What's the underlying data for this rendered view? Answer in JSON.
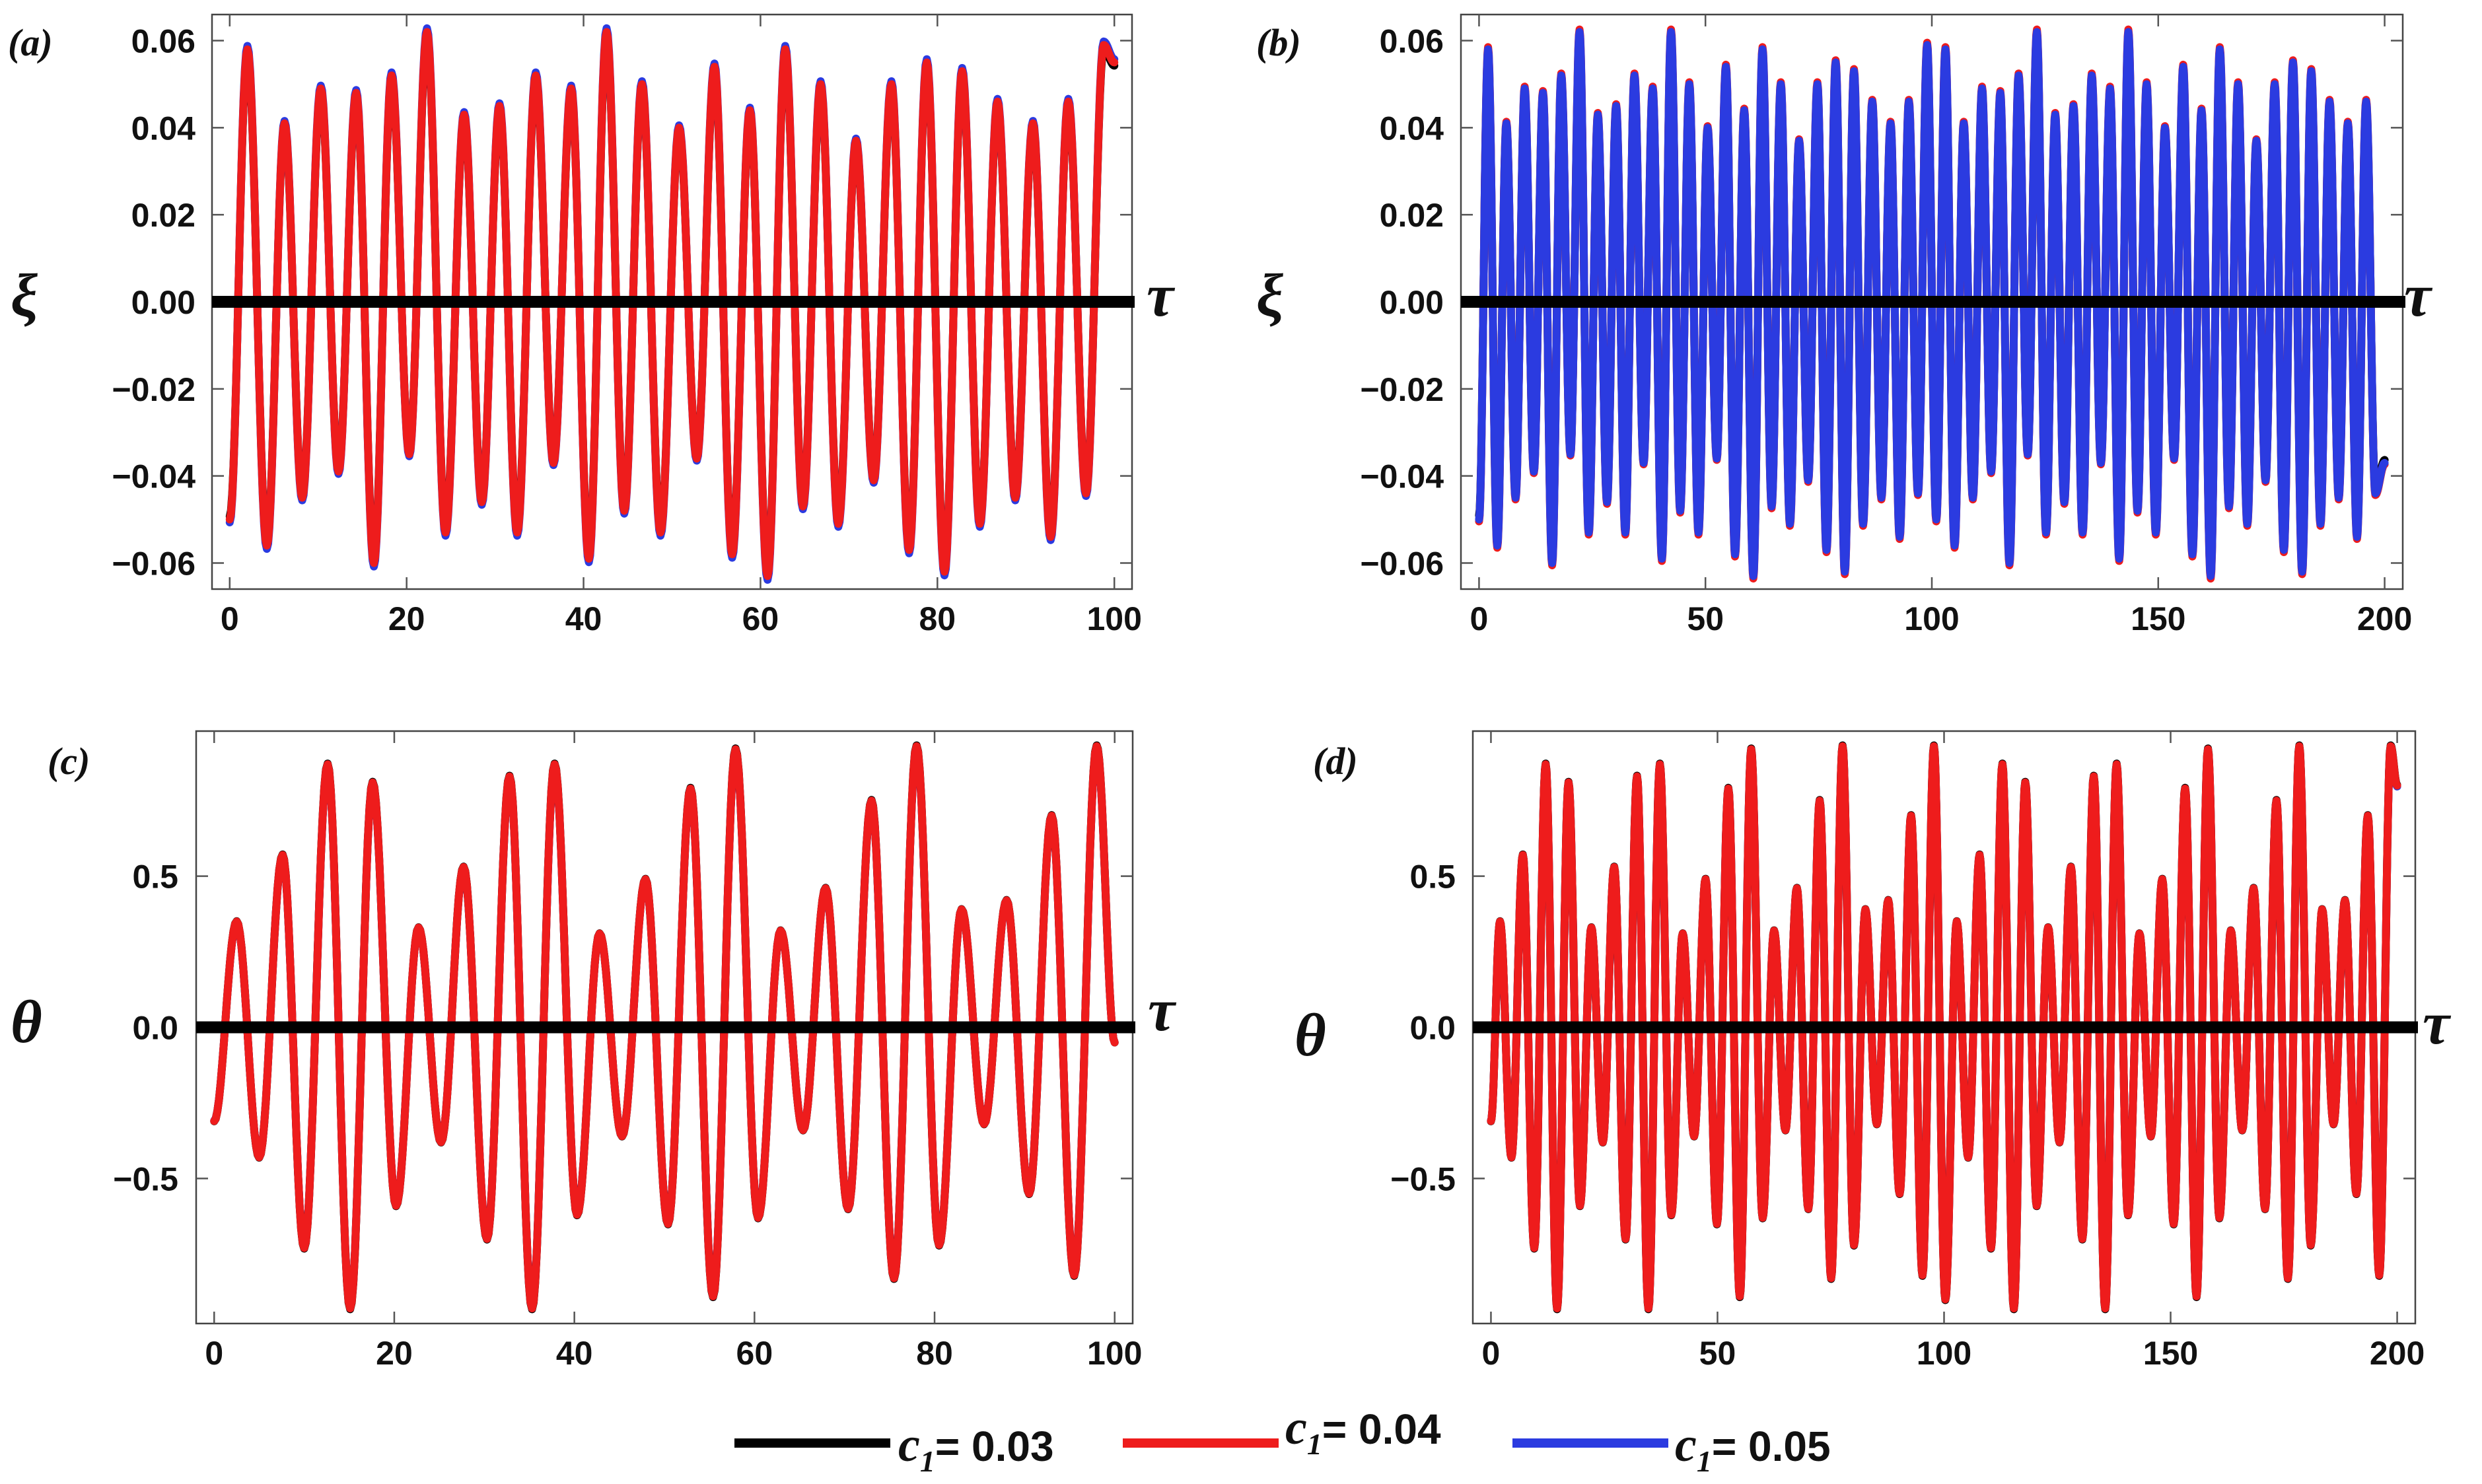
{
  "legend": [
    {
      "label_main": "c",
      "label_sub": "1",
      "label_rest": "= 0.03",
      "color": "#000000"
    },
    {
      "label_main": "c",
      "label_sub": "1",
      "label_rest": "= 0.04",
      "color": "#ee1c1c"
    },
    {
      "label_main": "c",
      "label_sub": "1",
      "label_rest": "= 0.05",
      "color": "#2b3be0"
    }
  ],
  "chart_data": [
    {
      "type": "line",
      "panel_label": "(a)",
      "xlabel": "τ",
      "ylabel": "ξ",
      "xlim": [
        -2,
        102
      ],
      "ylim": [
        -0.066,
        0.066
      ],
      "xticks": [
        0,
        20,
        40,
        60,
        80,
        100
      ],
      "xtick_labels": [
        "0",
        "20",
        "40",
        "60",
        "80",
        "100"
      ],
      "yticks": [
        0.06,
        0.04,
        0.02,
        0.0,
        -0.02,
        -0.04,
        -0.06
      ],
      "ytick_labels": [
        "0.06",
        "0.04",
        "0.02",
        "0.00",
        "−0.02",
        "−0.04",
        "−0.06"
      ],
      "x_start": 0,
      "x_end": 100,
      "start_value": -0.05,
      "end_value": 0.055,
      "zero_line": true,
      "extrema": [
        {
          "x": 2.0,
          "y": 0.058
        },
        {
          "x": 4.2,
          "y": -0.056
        },
        {
          "x": 6.2,
          "y": 0.041
        },
        {
          "x": 8.2,
          "y": -0.045
        },
        {
          "x": 10.3,
          "y": 0.049
        },
        {
          "x": 12.3,
          "y": -0.039
        },
        {
          "x": 14.3,
          "y": 0.048
        },
        {
          "x": 16.3,
          "y": -0.06
        },
        {
          "x": 18.3,
          "y": 0.052
        },
        {
          "x": 20.3,
          "y": -0.035
        },
        {
          "x": 22.3,
          "y": 0.062
        },
        {
          "x": 24.4,
          "y": -0.053
        },
        {
          "x": 26.5,
          "y": 0.043
        },
        {
          "x": 28.5,
          "y": -0.046
        },
        {
          "x": 30.5,
          "y": 0.045
        },
        {
          "x": 32.5,
          "y": -0.053
        },
        {
          "x": 34.6,
          "y": 0.052
        },
        {
          "x": 36.6,
          "y": -0.037
        },
        {
          "x": 38.6,
          "y": 0.049
        },
        {
          "x": 40.6,
          "y": -0.059
        },
        {
          "x": 42.6,
          "y": 0.062
        },
        {
          "x": 44.6,
          "y": -0.048
        },
        {
          "x": 46.6,
          "y": 0.05
        },
        {
          "x": 48.7,
          "y": -0.053
        },
        {
          "x": 50.8,
          "y": 0.04
        },
        {
          "x": 52.8,
          "y": -0.036
        },
        {
          "x": 54.8,
          "y": 0.054
        },
        {
          "x": 56.8,
          "y": -0.058
        },
        {
          "x": 58.8,
          "y": 0.044
        },
        {
          "x": 60.8,
          "y": -0.063
        },
        {
          "x": 62.8,
          "y": 0.058
        },
        {
          "x": 64.8,
          "y": -0.047
        },
        {
          "x": 66.8,
          "y": 0.05
        },
        {
          "x": 68.8,
          "y": -0.051
        },
        {
          "x": 70.8,
          "y": 0.037
        },
        {
          "x": 72.8,
          "y": -0.041
        },
        {
          "x": 74.8,
          "y": 0.05
        },
        {
          "x": 76.8,
          "y": -0.057
        },
        {
          "x": 78.8,
          "y": 0.055
        },
        {
          "x": 80.8,
          "y": -0.062
        },
        {
          "x": 82.8,
          "y": 0.053
        },
        {
          "x": 84.8,
          "y": -0.051
        },
        {
          "x": 86.8,
          "y": 0.046
        },
        {
          "x": 88.8,
          "y": -0.045
        },
        {
          "x": 90.8,
          "y": 0.041
        },
        {
          "x": 92.8,
          "y": -0.054
        },
        {
          "x": 94.8,
          "y": 0.046
        },
        {
          "x": 96.8,
          "y": -0.044
        },
        {
          "x": 98.8,
          "y": 0.059
        }
      ],
      "series": [
        {
          "name": "c1 = 0.03",
          "offset": -0.0009
        },
        {
          "name": "c1 = 0.05",
          "offset": 0.0009
        },
        {
          "name": "c1 = 0.04",
          "offset": 0.0
        }
      ]
    },
    {
      "type": "line",
      "panel_label": "(b)",
      "xlabel": "τ",
      "ylabel": "ξ",
      "xlim": [
        -4,
        204
      ],
      "ylim": [
        -0.066,
        0.066
      ],
      "xticks": [
        0,
        50,
        100,
        150,
        200
      ],
      "xtick_labels": [
        "0",
        "50",
        "100",
        "150",
        "200"
      ],
      "yticks": [
        0.06,
        0.04,
        0.02,
        0.0,
        -0.02,
        -0.04,
        -0.06
      ],
      "ytick_labels": [
        "0.06",
        "0.04",
        "0.02",
        "0.00",
        "−0.02",
        "−0.04",
        "−0.06"
      ],
      "x_start": 0,
      "x_end": 200,
      "start_value": -0.05,
      "end_value": -0.037,
      "zero_line": true,
      "extrema_repeat": true,
      "period_pattern": [
        0.058,
        -0.056,
        0.041,
        -0.045,
        0.049,
        -0.039,
        0.048,
        -0.06,
        0.052,
        -0.035,
        0.062,
        -0.053,
        0.043,
        -0.046,
        0.045,
        -0.053,
        0.052,
        -0.037,
        0.049,
        -0.059,
        0.062,
        -0.048,
        0.05,
        -0.053,
        0.04,
        -0.036,
        0.054,
        -0.058,
        0.044,
        -0.063,
        0.058,
        -0.047,
        0.05,
        -0.051,
        0.037,
        -0.041,
        0.05,
        -0.057,
        0.055,
        -0.062,
        0.053,
        -0.051,
        0.046,
        -0.045,
        0.041,
        -0.054,
        0.046,
        -0.044,
        0.059,
        -0.05
      ],
      "half_period": 2.02,
      "series": [
        {
          "name": "c1 = 0.03",
          "offset": -0.0012
        },
        {
          "name": "c1 = 0.04",
          "offset": 0.0006
        },
        {
          "name": "c1 = 0.05",
          "offset": 0.0
        }
      ]
    },
    {
      "type": "line",
      "panel_label": "(c)",
      "xlabel": "τ",
      "ylabel": "θ",
      "xlim": [
        -2,
        102
      ],
      "ylim": [
        -0.98,
        0.98
      ],
      "xticks": [
        0,
        20,
        40,
        60,
        80,
        100
      ],
      "xtick_labels": [
        "0",
        "20",
        "40",
        "60",
        "80",
        "100"
      ],
      "yticks": [
        0.5,
        0.0,
        -0.5
      ],
      "ytick_labels": [
        "0.5",
        "0.0",
        "−0.5"
      ],
      "x_start": 0,
      "x_end": 100,
      "start_value": -0.31,
      "end_value": -0.05,
      "zero_line": true,
      "extrema": [
        {
          "x": 2.5,
          "y": 0.35
        },
        {
          "x": 5.0,
          "y": -0.43
        },
        {
          "x": 7.6,
          "y": 0.57
        },
        {
          "x": 10.0,
          "y": -0.73
        },
        {
          "x": 12.6,
          "y": 0.87
        },
        {
          "x": 15.1,
          "y": -0.93
        },
        {
          "x": 17.6,
          "y": 0.81
        },
        {
          "x": 20.2,
          "y": -0.59
        },
        {
          "x": 22.7,
          "y": 0.33
        },
        {
          "x": 25.2,
          "y": -0.38
        },
        {
          "x": 27.7,
          "y": 0.53
        },
        {
          "x": 30.3,
          "y": -0.7
        },
        {
          "x": 32.8,
          "y": 0.83
        },
        {
          "x": 35.3,
          "y": -0.93
        },
        {
          "x": 37.8,
          "y": 0.87
        },
        {
          "x": 40.3,
          "y": -0.62
        },
        {
          "x": 42.8,
          "y": 0.31
        },
        {
          "x": 45.3,
          "y": -0.36
        },
        {
          "x": 47.9,
          "y": 0.49
        },
        {
          "x": 50.4,
          "y": -0.65
        },
        {
          "x": 52.9,
          "y": 0.79
        },
        {
          "x": 55.4,
          "y": -0.89
        },
        {
          "x": 57.9,
          "y": 0.92
        },
        {
          "x": 60.4,
          "y": -0.63
        },
        {
          "x": 62.9,
          "y": 0.32
        },
        {
          "x": 65.4,
          "y": -0.34
        },
        {
          "x": 67.9,
          "y": 0.46
        },
        {
          "x": 70.4,
          "y": -0.6
        },
        {
          "x": 73.0,
          "y": 0.75
        },
        {
          "x": 75.5,
          "y": -0.83
        },
        {
          "x": 78.0,
          "y": 0.93
        },
        {
          "x": 80.5,
          "y": -0.72
        },
        {
          "x": 83.0,
          "y": 0.39
        },
        {
          "x": 85.5,
          "y": -0.32
        },
        {
          "x": 88.0,
          "y": 0.42
        },
        {
          "x": 90.5,
          "y": -0.55
        },
        {
          "x": 93.0,
          "y": 0.7
        },
        {
          "x": 95.5,
          "y": -0.82
        },
        {
          "x": 98.0,
          "y": 0.93
        }
      ],
      "series": [
        {
          "name": "c1 = 0.05",
          "offset": -0.004
        },
        {
          "name": "c1 = 0.03",
          "offset": 0.003
        },
        {
          "name": "c1 = 0.04",
          "offset": 0.0
        }
      ]
    },
    {
      "type": "line",
      "panel_label": "(d)",
      "xlabel": "τ",
      "ylabel": "θ",
      "xlim": [
        -4,
        204
      ],
      "ylim": [
        -0.98,
        0.98
      ],
      "xticks": [
        0,
        50,
        100,
        150,
        200
      ],
      "xtick_labels": [
        "0",
        "50",
        "100",
        "150",
        "200"
      ],
      "yticks": [
        0.5,
        0.0,
        -0.5
      ],
      "ytick_labels": [
        "0.5",
        "0.0",
        "−0.5"
      ],
      "x_start": 0,
      "x_end": 200,
      "start_value": -0.31,
      "end_value": 0.8,
      "zero_line": true,
      "extrema_repeat": true,
      "period_pattern": [
        0.35,
        -0.43,
        0.57,
        -0.73,
        0.87,
        -0.93,
        0.81,
        -0.59,
        0.33,
        -0.38,
        0.53,
        -0.7,
        0.83,
        -0.93,
        0.87,
        -0.62,
        0.31,
        -0.36,
        0.49,
        -0.65,
        0.79,
        -0.89,
        0.92,
        -0.63,
        0.32,
        -0.34,
        0.46,
        -0.6,
        0.75,
        -0.83,
        0.93,
        -0.72,
        0.39,
        -0.32,
        0.42,
        -0.55,
        0.7,
        -0.82,
        0.93,
        -0.9
      ],
      "half_period": 2.52,
      "series": [
        {
          "name": "c1 = 0.05",
          "offset": -0.004
        },
        {
          "name": "c1 = 0.03",
          "offset": 0.003
        },
        {
          "name": "c1 = 0.04",
          "offset": 0.0
        }
      ]
    }
  ]
}
